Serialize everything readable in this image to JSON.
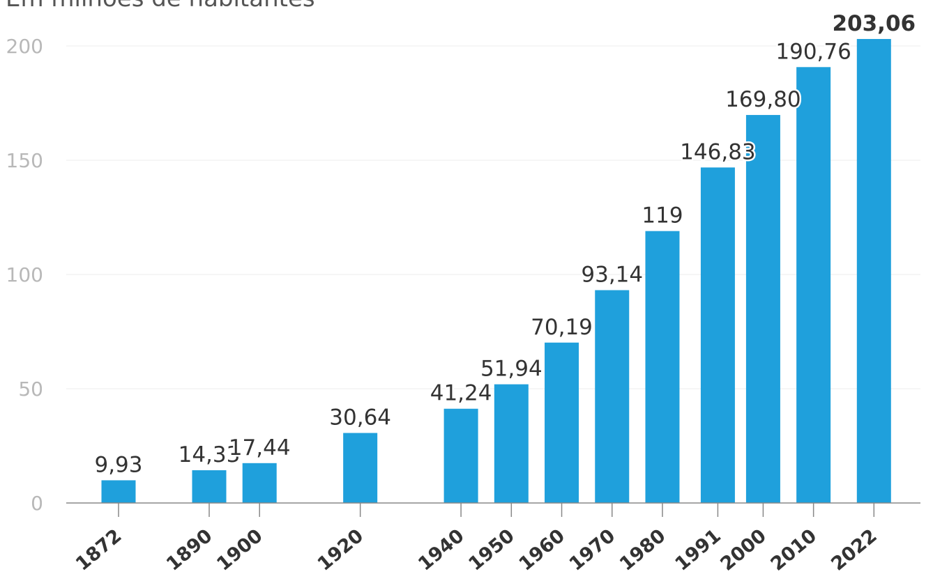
{
  "subtitle": "Em milhões de habitantes",
  "chart_data": {
    "type": "bar",
    "subtitle": "Em milhões de habitantes",
    "categories": [
      "1872",
      "1890",
      "1900",
      "1920",
      "1940",
      "1950",
      "1960",
      "1970",
      "1980",
      "1991",
      "2000",
      "2010",
      "2022"
    ],
    "values": [
      9.93,
      14.33,
      17.44,
      30.64,
      41.24,
      51.94,
      70.19,
      93.14,
      119,
      146.83,
      169.8,
      190.76,
      203.06
    ],
    "data_labels": [
      "9,93",
      "14,33",
      "17,44",
      "30,64",
      "41,24",
      "51,94",
      "70,19",
      "93,14",
      "119",
      "146,83",
      "169,80",
      "190,76",
      "203,06"
    ],
    "yticks": [
      0,
      50,
      100,
      150,
      200
    ],
    "ylim": [
      0,
      210
    ],
    "grid": true,
    "legend": "none",
    "colors": {
      "bar": "#1fa0dc"
    }
  }
}
